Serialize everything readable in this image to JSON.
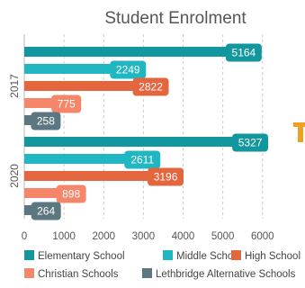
{
  "chart_data": {
    "type": "bar",
    "orientation": "horizontal",
    "title": "Student Enrolment",
    "categories": [
      "2017",
      "2020"
    ],
    "series": [
      {
        "name": "Elementary School",
        "color": "#13979e",
        "values": [
          5164,
          5327
        ]
      },
      {
        "name": "Middle School",
        "color": "#21b7c2",
        "values": [
          2249,
          2611
        ]
      },
      {
        "name": "High School",
        "color": "#e4663f",
        "values": [
          2822,
          3196
        ]
      },
      {
        "name": "Christian Schools",
        "color": "#f5866a",
        "values": [
          775,
          898
        ]
      },
      {
        "name": "Lethbridge Alternative Schools",
        "color": "#5c7780",
        "values": [
          258,
          264
        ]
      }
    ],
    "xlim": [
      0,
      6400
    ],
    "xticks": [
      "0",
      "1000",
      "2000",
      "3000",
      "4000",
      "5000",
      "6000"
    ],
    "grid": true,
    "legend_position": "bottom"
  }
}
